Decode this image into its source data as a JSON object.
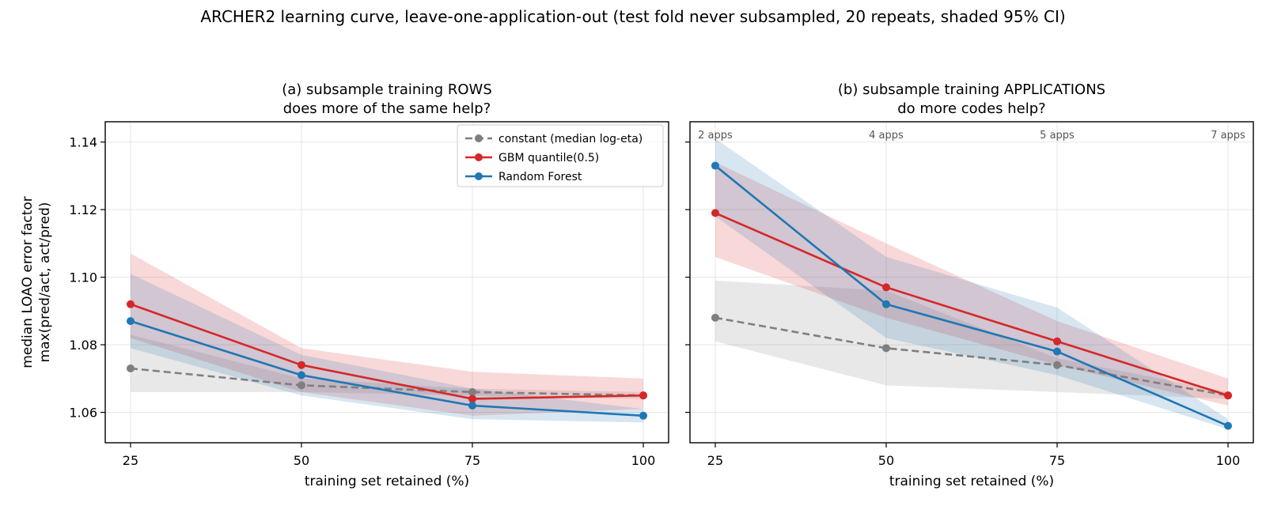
{
  "title": "ARCHER2 learning curve, leave-one-application-out (test fold never subsampled, 20 repeats, shaded 95% CI)",
  "colors": {
    "constant": "#7f7f7f",
    "gbm": "#d62728",
    "rf": "#1f77b4"
  },
  "chart_data": [
    {
      "type": "line",
      "title": [
        "(a) subsample training ROWS",
        "does more of the same help?"
      ],
      "xlabel": "training set retained (%)",
      "ylabel": [
        "median LOAO error factor",
        "max(pred/act, act/pred)"
      ],
      "x": [
        25,
        50,
        75,
        100
      ],
      "xticks": [
        "25",
        "50",
        "75",
        "100"
      ],
      "yticks": [
        "1.06",
        "1.08",
        "1.10",
        "1.12",
        "1.14"
      ],
      "xlim": [
        21.3,
        103.7
      ],
      "ylim": [
        1.051,
        1.146
      ],
      "grid": true,
      "legend": {
        "placement": "top-right",
        "entries": [
          "constant (median log-eta)",
          "GBM quantile(0.5)",
          "Random Forest"
        ]
      },
      "series": [
        {
          "name": "constant (median log-eta)",
          "key": "constant",
          "dashed": true,
          "values": [
            1.073,
            1.068,
            1.066,
            1.065
          ],
          "ci_low": [
            1.066,
            1.066,
            1.065,
            1.064
          ],
          "ci_high": [
            1.083,
            1.07,
            1.067,
            1.066
          ]
        },
        {
          "name": "GBM quantile(0.5)",
          "key": "gbm",
          "dashed": false,
          "values": [
            1.092,
            1.074,
            1.064,
            1.065
          ],
          "ci_low": [
            1.082,
            1.066,
            1.059,
            1.061
          ],
          "ci_high": [
            1.107,
            1.079,
            1.072,
            1.07
          ]
        },
        {
          "name": "Random Forest",
          "key": "rf",
          "dashed": false,
          "values": [
            1.087,
            1.071,
            1.062,
            1.059
          ],
          "ci_low": [
            1.079,
            1.065,
            1.058,
            1.057
          ],
          "ci_high": [
            1.101,
            1.077,
            1.067,
            1.061
          ]
        }
      ]
    },
    {
      "type": "line",
      "title": [
        "(b) subsample training APPLICATIONS",
        "do more codes help?"
      ],
      "xlabel": "training set retained (%)",
      "x": [
        25,
        50,
        75,
        100
      ],
      "xticks": [
        "25",
        "50",
        "75",
        "100"
      ],
      "ylim": [
        1.051,
        1.146
      ],
      "xlim": [
        21.3,
        103.7
      ],
      "grid": true,
      "annotations": [
        "2 apps",
        "4 apps",
        "5 apps",
        "7 apps"
      ],
      "series": [
        {
          "name": "constant (median log-eta)",
          "key": "constant",
          "dashed": true,
          "values": [
            1.088,
            1.079,
            1.074,
            1.065
          ],
          "ci_low": [
            1.081,
            1.068,
            1.066,
            1.064
          ],
          "ci_high": [
            1.099,
            1.096,
            1.076,
            1.066
          ]
        },
        {
          "name": "GBM quantile(0.5)",
          "key": "gbm",
          "dashed": false,
          "values": [
            1.119,
            1.097,
            1.081,
            1.065
          ],
          "ci_low": [
            1.106,
            1.088,
            1.074,
            1.062
          ],
          "ci_high": [
            1.134,
            1.11,
            1.087,
            1.07
          ]
        },
        {
          "name": "Random Forest",
          "key": "rf",
          "dashed": false,
          "values": [
            1.133,
            1.092,
            1.078,
            1.056
          ],
          "ci_low": [
            1.118,
            1.082,
            1.071,
            1.055
          ],
          "ci_high": [
            1.141,
            1.106,
            1.091,
            1.058
          ]
        }
      ]
    }
  ]
}
